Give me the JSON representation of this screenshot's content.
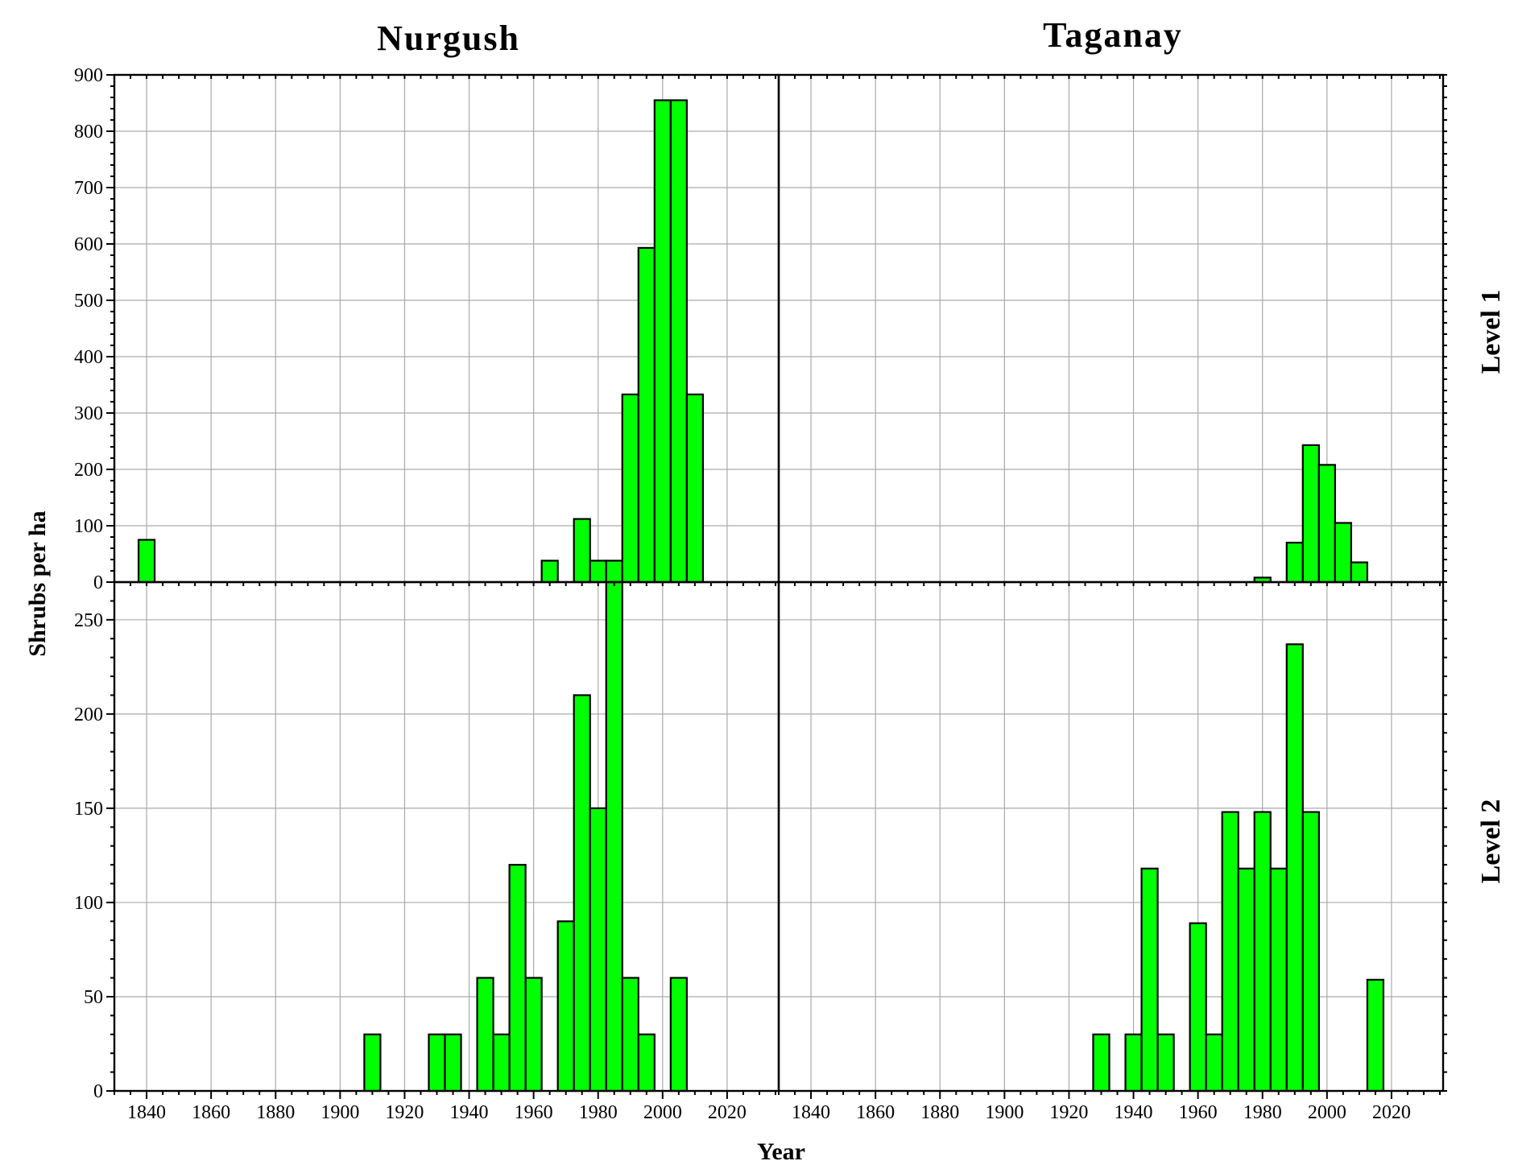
{
  "chart_data": {
    "type": "bar",
    "layout": "2x2 panel histogram grid",
    "xlabel": "Year",
    "ylabel": "Shrubs per ha",
    "xlim": [
      1830,
      2036
    ],
    "xticks": [
      1840,
      1860,
      1880,
      1900,
      1920,
      1940,
      1960,
      1980,
      2000,
      2020
    ],
    "bin_width": 5,
    "bar_color": "#00ff00",
    "grid": true,
    "columns": [
      "Nurgush",
      "Taganay"
    ],
    "rows": [
      "Level 1",
      "Level 2"
    ],
    "panels": [
      {
        "column": "Nurgush",
        "row": "Level 1",
        "ylim": [
          0,
          900
        ],
        "yticks": [
          0,
          100,
          200,
          300,
          400,
          500,
          600,
          700,
          800,
          900
        ],
        "bins": [
          {
            "x": 1840,
            "y": 75
          },
          {
            "x": 1965,
            "y": 38
          },
          {
            "x": 1975,
            "y": 112
          },
          {
            "x": 1980,
            "y": 38
          },
          {
            "x": 1985,
            "y": 38
          },
          {
            "x": 1990,
            "y": 333
          },
          {
            "x": 1995,
            "y": 593
          },
          {
            "x": 2000,
            "y": 855
          },
          {
            "x": 2005,
            "y": 855
          },
          {
            "x": 2010,
            "y": 333
          }
        ]
      },
      {
        "column": "Taganay",
        "row": "Level 1",
        "ylim": [
          0,
          900
        ],
        "yticks": [
          0,
          100,
          200,
          300,
          400,
          500,
          600,
          700,
          800,
          900
        ],
        "bins": [
          {
            "x": 1980,
            "y": 8
          },
          {
            "x": 1990,
            "y": 70
          },
          {
            "x": 1995,
            "y": 243
          },
          {
            "x": 2000,
            "y": 208
          },
          {
            "x": 2005,
            "y": 105
          },
          {
            "x": 2010,
            "y": 35
          }
        ]
      },
      {
        "column": "Nurgush",
        "row": "Level 2",
        "ylim": [
          0,
          270
        ],
        "yticks": [
          0,
          50,
          100,
          150,
          200,
          250
        ],
        "bins": [
          {
            "x": 1910,
            "y": 30
          },
          {
            "x": 1930,
            "y": 30
          },
          {
            "x": 1935,
            "y": 30
          },
          {
            "x": 1945,
            "y": 60
          },
          {
            "x": 1950,
            "y": 30
          },
          {
            "x": 1955,
            "y": 120
          },
          {
            "x": 1960,
            "y": 60
          },
          {
            "x": 1970,
            "y": 90
          },
          {
            "x": 1975,
            "y": 210
          },
          {
            "x": 1980,
            "y": 150
          },
          {
            "x": 1985,
            "y": 270
          },
          {
            "x": 1990,
            "y": 60
          },
          {
            "x": 1995,
            "y": 30
          },
          {
            "x": 2005,
            "y": 60
          }
        ]
      },
      {
        "column": "Taganay",
        "row": "Level 2",
        "ylim": [
          0,
          270
        ],
        "yticks": [
          0,
          50,
          100,
          150,
          200,
          250
        ],
        "bins": [
          {
            "x": 1930,
            "y": 30
          },
          {
            "x": 1940,
            "y": 30
          },
          {
            "x": 1945,
            "y": 118
          },
          {
            "x": 1950,
            "y": 30
          },
          {
            "x": 1960,
            "y": 89
          },
          {
            "x": 1965,
            "y": 30
          },
          {
            "x": 1970,
            "y": 148
          },
          {
            "x": 1975,
            "y": 118
          },
          {
            "x": 1980,
            "y": 148
          },
          {
            "x": 1985,
            "y": 118
          },
          {
            "x": 1990,
            "y": 237
          },
          {
            "x": 1995,
            "y": 148
          },
          {
            "x": 2015,
            "y": 59
          }
        ]
      }
    ]
  }
}
